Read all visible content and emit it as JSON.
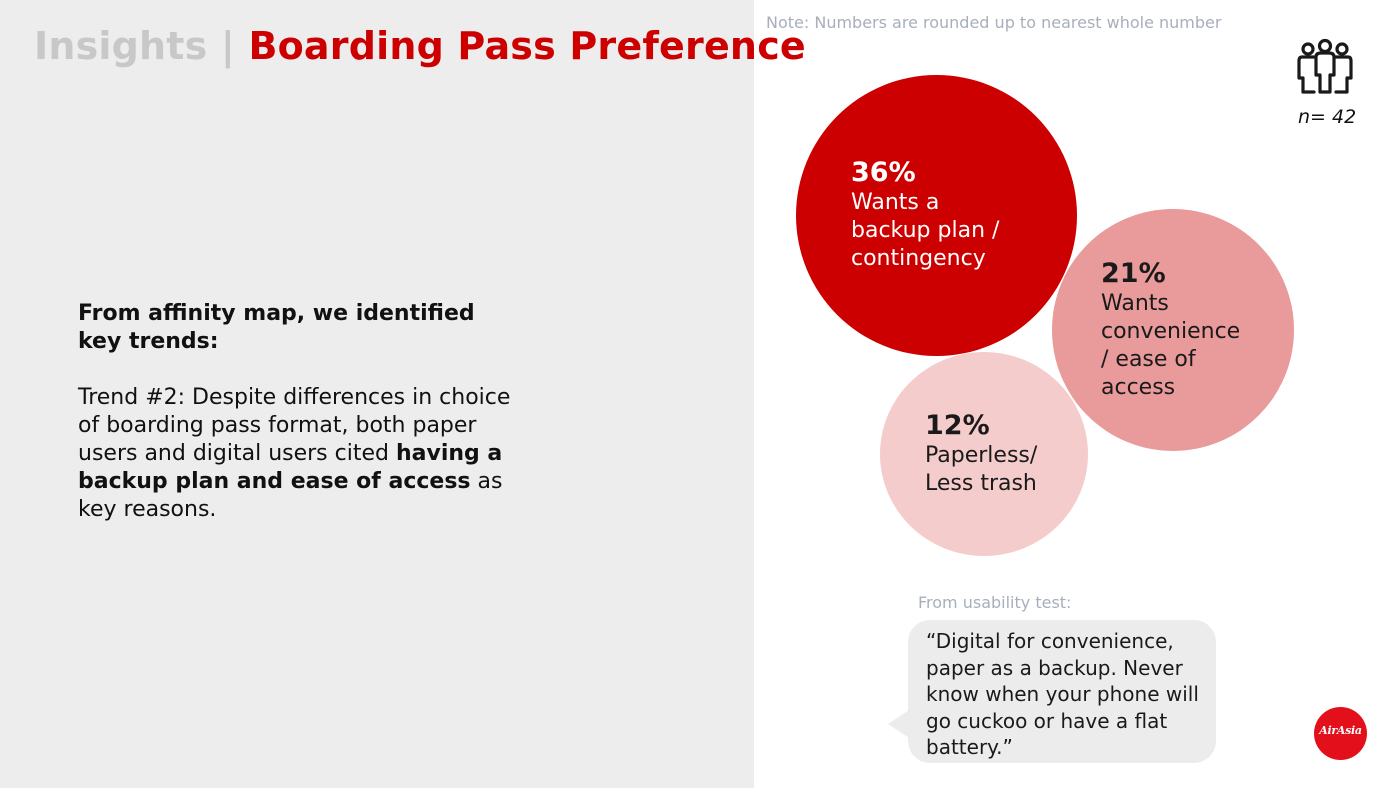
{
  "header": {
    "title_prefix": "Insights",
    "title_separator": "|",
    "title_main": "Boarding Pass Preference"
  },
  "left": {
    "intro": "From affinity map, we identified key trends:",
    "trend_text_1": "Trend #2: Despite differences in choice of boarding pass format, both paper users and digital users cited ",
    "trend_bold": "having a backup plan and ease of access",
    "trend_text_2": " as key reasons."
  },
  "note": "Note: Numbers are rounded up to nearest whole number",
  "sample": {
    "label": "n= 42",
    "icon": "people-group-icon"
  },
  "bubbles": [
    {
      "percent": "36%",
      "label": "Wants a\nbackup plan /\ncontingency",
      "value": 36,
      "color": "#cc0000"
    },
    {
      "percent": "21%",
      "label": "Wants\nconvenience\n/ ease of\naccess",
      "value": 21,
      "color": "#e99a9a"
    },
    {
      "percent": "12%",
      "label": "Paperless/\nLess trash",
      "value": 12,
      "color": "#f5cccc"
    }
  ],
  "usability": {
    "label": "From usability test:",
    "quote": "“Digital for convenience, paper as a backup. Never know when your phone will go cuckoo or have a flat battery.”"
  },
  "logo": {
    "text": "AirAsia",
    "color": "#e3101c"
  },
  "colors": {
    "accent": "#cc0000",
    "muted": "#a7afbb",
    "panel_bg": "#ededed"
  }
}
